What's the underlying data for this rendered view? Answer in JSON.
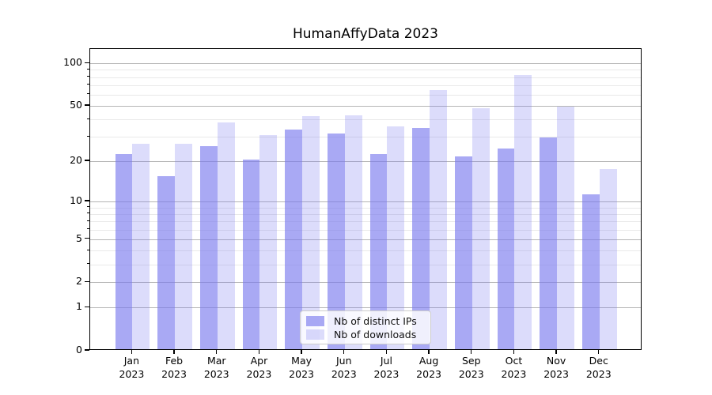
{
  "chart_data": {
    "type": "bar",
    "title": "HumanAffyData 2023",
    "categories": [
      {
        "line1": "Jan",
        "line2": "2023"
      },
      {
        "line1": "Feb",
        "line2": "2023"
      },
      {
        "line1": "Mar",
        "line2": "2023"
      },
      {
        "line1": "Apr",
        "line2": "2023"
      },
      {
        "line1": "May",
        "line2": "2023"
      },
      {
        "line1": "Jun",
        "line2": "2023"
      },
      {
        "line1": "Jul",
        "line2": "2023"
      },
      {
        "line1": "Aug",
        "line2": "2023"
      },
      {
        "line1": "Sep",
        "line2": "2023"
      },
      {
        "line1": "Oct",
        "line2": "2023"
      },
      {
        "line1": "Nov",
        "line2": "2023"
      },
      {
        "line1": "Dec",
        "line2": "2023"
      }
    ],
    "series": [
      {
        "name": "Nb of distinct IPs",
        "color": "#a8a8f2",
        "color_base": "#7878ee",
        "alpha": 0.64,
        "values": [
          22,
          15,
          25,
          20,
          33,
          31,
          22,
          34,
          21,
          24,
          29,
          11
        ]
      },
      {
        "name": "Nb of downloads",
        "color": "#dcdcf9",
        "color_base": "#7878ee",
        "alpha": 0.26,
        "values": [
          26,
          26,
          37,
          30,
          41,
          42,
          35,
          63,
          47,
          81,
          48,
          17
        ]
      }
    ],
    "y_axis": {
      "scale": "log(1+y)",
      "tick_labels": [
        "0",
        "1",
        "2",
        "5",
        "10",
        "20",
        "50",
        "100"
      ],
      "tick_values": [
        0,
        1,
        2,
        5,
        10,
        20,
        50,
        100
      ],
      "minor_tick_values": [
        3,
        4,
        6,
        7,
        8,
        9,
        30,
        40,
        60,
        70,
        80,
        90
      ],
      "ylim": [
        0,
        126
      ]
    },
    "legend_position": "lower center",
    "grid": true,
    "colors": {
      "grid_major": "#b5b5b5",
      "grid_minor": "#e9e9e9",
      "spine": "#000000",
      "text": "#000000",
      "background": "#ffffff"
    }
  }
}
